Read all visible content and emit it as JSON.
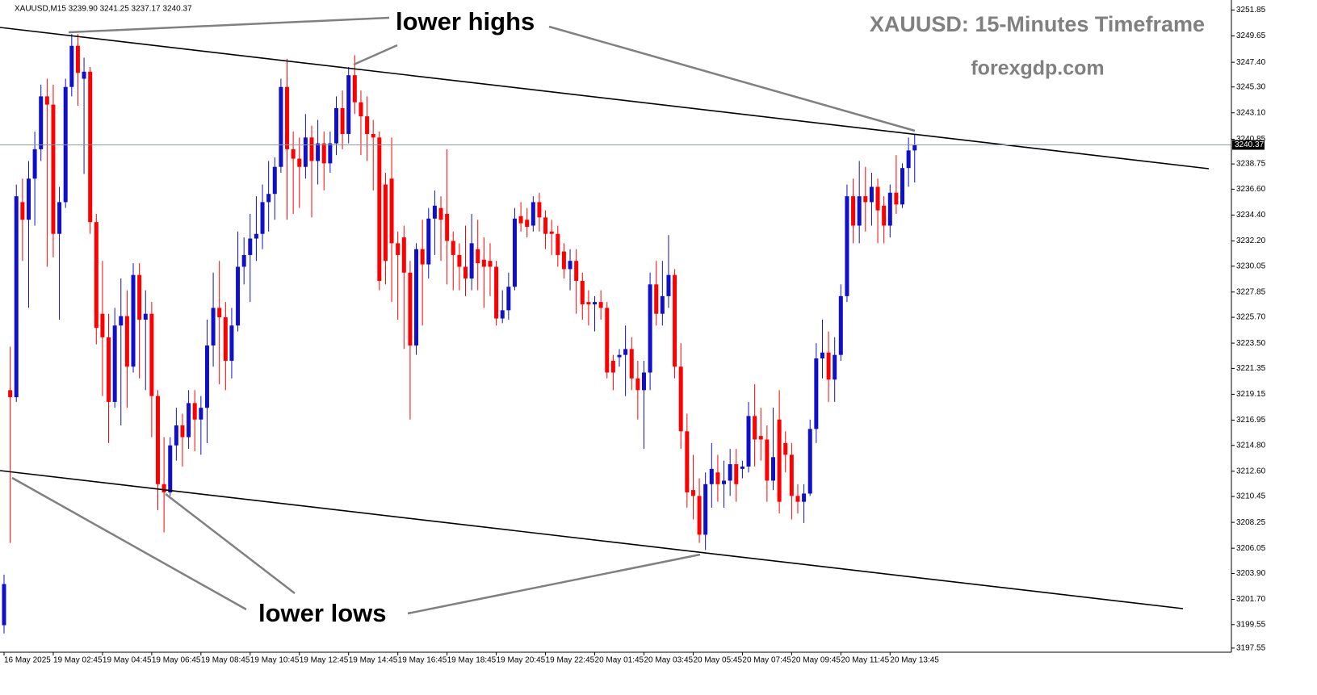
{
  "chart_data": {
    "type": "candlestick",
    "header": "XAUUSD,M15  3239.90 3241.25 3237.17 3240.37",
    "title": "XAUUSD: 15-Minutes Timeframe",
    "subtitle": "forexgdp.com",
    "annotations": [
      "lower highs",
      "lower lows"
    ],
    "up_color": "#1010c8",
    "down_color": "#ff0000",
    "last_price": 3240.37,
    "ylim": [
      3197.2,
      3252.7
    ],
    "yticks": [
      3251.85,
      3249.65,
      {
        "value": 3247.4,
        "label": "3247.40"
      },
      {
        "value": 3245.3,
        "label": "3245.30"
      },
      {
        "value": 3243.1,
        "label": "3243.10"
      },
      3240.85,
      3238.75,
      {
        "value": 3236.6,
        "label": "3236.60"
      },
      {
        "value": 3234.4,
        "label": "3234.40"
      },
      {
        "value": 3232.2,
        "label": "3232.20"
      },
      3230.05,
      3227.85,
      {
        "value": 3225.7,
        "label": "3225.70"
      },
      {
        "value": 3223.5,
        "label": "3223.50"
      },
      3221.35,
      3219.15,
      3216.95,
      {
        "value": 3214.8,
        "label": "3214.80"
      },
      {
        "value": 3212.6,
        "label": "3212.60"
      },
      3210.45,
      3208.25,
      3206.05,
      {
        "value": 3203.9,
        "label": "3203.90"
      },
      {
        "value": 3201.7,
        "label": "3201.70"
      },
      3199.55,
      3197.55
    ],
    "xticks": [
      {
        "value": 0,
        "label": "16 May 2025"
      },
      {
        "value": 8,
        "label": "19 May 02:45"
      },
      {
        "value": 16,
        "label": "19 May 04:45"
      },
      {
        "value": 24,
        "label": "19 May 06:45"
      },
      {
        "value": 32,
        "label": "19 May 08:45"
      },
      {
        "value": 40,
        "label": "19 May 10:45"
      },
      {
        "value": 48,
        "label": "19 May 12:45"
      },
      {
        "value": 56,
        "label": "19 May 14:45"
      },
      {
        "value": 64,
        "label": "19 May 16:45"
      },
      {
        "value": 72,
        "label": "19 May 18:45"
      },
      {
        "value": 80,
        "label": "19 May 20:45"
      },
      {
        "value": 88,
        "label": "19 May 22:45"
      },
      {
        "value": 96,
        "label": "20 May 01:45"
      },
      {
        "value": 104,
        "label": "20 May 03:45"
      },
      {
        "value": 112,
        "label": "20 May 05:45"
      },
      {
        "value": 120,
        "label": "20 May 07:45"
      },
      {
        "value": 128,
        "label": "20 May 09:45"
      },
      {
        "value": 136,
        "label": "20 May 11:45"
      },
      {
        "value": 144,
        "label": "20 May 13:45"
      }
    ],
    "open": [
      3199.5,
      3219.5,
      3218.9,
      3235.5,
      3234.0,
      3237.5,
      3240.0,
      3244.5,
      3243.8,
      3232.8,
      3235.5,
      3245.3,
      3248.8,
      3246.0,
      3246.6,
      3233.8,
      3226.0,
      3224.0,
      3218.5,
      3225.0,
      3225.8,
      3221.5,
      3229.3,
      3225.5,
      3226.0,
      3219.0,
      3211.5,
      3210.8,
      3214.8,
      3216.5,
      3215.5,
      3218.4,
      3217.0,
      3218.0,
      3223.3,
      3226.5,
      3225.7,
      3222.0,
      3225.0,
      3230.0,
      3231.0,
      3232.4,
      3232.8,
      3235.5,
      3236.2,
      3238.5,
      3245.3,
      3240.0,
      3239.2,
      3238.5,
      3241.0,
      3239.0,
      3240.5,
      3238.8,
      3240.5,
      3243.5,
      3241.3,
      3246.3,
      3244.0,
      3242.8,
      3241.3,
      3241.0,
      3237.0,
      3237.5,
      3232.0,
      3232.5,
      3229.5,
      3223.3,
      3231.5,
      3230.2,
      3234.1,
      3235.0,
      3234.5,
      3232.2,
      3231.0,
      3230.0,
      3229.0,
      3231.5,
      3230.6,
      3230.5,
      3230.0,
      3225.6,
      3226.3,
      3228.3,
      3234.3,
      3234.0,
      3233.5,
      3235.5,
      3234.2,
      3233.0,
      3232.8,
      3231.3,
      3229.8,
      3230.5,
      3228.8,
      3227.0,
      3226.8,
      3227.0,
      3226.5,
      3222.0,
      3222.3,
      3222.5,
      3223.0,
      3220.5,
      3219.5,
      3221.0,
      3228.5,
      3226.0,
      3227.5,
      3229.3,
      3221.5,
      3216.0,
      3211.0,
      3210.5,
      3207.2,
      3211.5,
      3212.5,
      3211.5,
      3211.8,
      3213.2,
      3212.8,
      3213.0,
      3217.3,
      3215.6,
      3215.3,
      3211.8,
      3217.0,
      3215.0,
      3214.0,
      3210.5,
      3210.0,
      3210.7,
      3216.2,
      3222.2,
      3222.7,
      3220.4,
      3222.5,
      3227.5,
      3236.0,
      3233.5,
      3236.0,
      3235.5,
      3236.8,
      3235.2,
      3233.5,
      3236.3,
      3235.3,
      3238.4,
      3239.9
    ],
    "high": [
      3203.8,
      3223.2,
      3237.0,
      3237.5,
      3239.0,
      3241.5,
      3245.5,
      3246.0,
      3245.5,
      3236.8,
      3246.0,
      3249.8,
      3249.8,
      3247.8,
      3247.0,
      3234.5,
      3230.5,
      3226.0,
      3226.5,
      3229.0,
      3228.0,
      3230.3,
      3230.3,
      3228.0,
      3227.0,
      3219.5,
      3215.5,
      3215.5,
      3218.0,
      3217.5,
      3219.5,
      3219.5,
      3219.0,
      3225.5,
      3229.5,
      3230.5,
      3227.0,
      3226.5,
      3233.0,
      3232.5,
      3234.5,
      3236.0,
      3237.0,
      3239.0,
      3239.3,
      3246.0,
      3247.7,
      3241.5,
      3241.0,
      3243.0,
      3242.0,
      3242.5,
      3241.5,
      3241.5,
      3244.5,
      3245.0,
      3247.0,
      3248.0,
      3245.0,
      3244.5,
      3242.5,
      3241.5,
      3238.0,
      3241.0,
      3233.0,
      3233.5,
      3230.5,
      3232.0,
      3234.0,
      3235.0,
      3236.5,
      3236.0,
      3240.0,
      3233.0,
      3232.0,
      3233.5,
      3234.5,
      3234.0,
      3232.5,
      3232.0,
      3230.5,
      3228.0,
      3229.5,
      3235.0,
      3235.5,
      3235.0,
      3236.0,
      3236.3,
      3234.8,
      3234.0,
      3233.5,
      3232.0,
      3231.5,
      3231.5,
      3229.5,
      3228.0,
      3227.5,
      3228.0,
      3227.0,
      3222.5,
      3223.0,
      3225.0,
      3224.0,
      3222.0,
      3222.0,
      3229.5,
      3230.5,
      3230.5,
      3232.7,
      3229.8,
      3223.5,
      3217.5,
      3214.0,
      3212.0,
      3212.5,
      3215.0,
      3214.0,
      3213.5,
      3214.5,
      3214.5,
      3213.5,
      3218.5,
      3220.0,
      3218.0,
      3216.5,
      3218.0,
      3219.5,
      3216.0,
      3215.0,
      3211.5,
      3211.5,
      3217.0,
      3223.5,
      3225.5,
      3224.5,
      3224.0,
      3228.5,
      3237.0,
      3237.5,
      3239.0,
      3238.5,
      3238.0,
      3237.5,
      3236.0,
      3237.0,
      3239.5,
      3238.8,
      3241.0,
      3241.25
    ],
    "low": [
      3198.8,
      3206.5,
      3218.5,
      3230.5,
      3226.5,
      3233.5,
      3239.0,
      3230.0,
      3230.8,
      3225.5,
      3235.0,
      3244.5,
      3243.7,
      3237.9,
      3232.8,
      3223.4,
      3219.0,
      3215.0,
      3218.0,
      3216.5,
      3218.0,
      3221.0,
      3220.5,
      3219.5,
      3215.5,
      3209.3,
      3207.4,
      3210.5,
      3213.5,
      3213.0,
      3214.5,
      3214.3,
      3214.0,
      3215.0,
      3221.5,
      3220.0,
      3219.5,
      3220.5,
      3224.5,
      3228.5,
      3227.0,
      3230.5,
      3231.5,
      3233.0,
      3234.0,
      3238.0,
      3234.0,
      3234.5,
      3235.0,
      3237.5,
      3234.2,
      3237.0,
      3236.5,
      3238.0,
      3239.5,
      3240.0,
      3240.5,
      3243.0,
      3239.5,
      3239.0,
      3236.5,
      3228.0,
      3228.5,
      3227.0,
      3225.5,
      3223.0,
      3217.0,
      3222.5,
      3225.0,
      3229.0,
      3231.0,
      3230.5,
      3228.5,
      3228.0,
      3228.0,
      3227.5,
      3228.0,
      3228.0,
      3226.5,
      3227.5,
      3225.0,
      3225.2,
      3225.5,
      3228.0,
      3233.0,
      3232.5,
      3233.0,
      3233.0,
      3231.5,
      3231.0,
      3230.0,
      3229.0,
      3228.0,
      3226.0,
      3225.5,
      3225.0,
      3224.5,
      3225.5,
      3220.5,
      3219.5,
      3221.5,
      3219.0,
      3219.5,
      3217.0,
      3214.5,
      3219.5,
      3225.0,
      3225.0,
      3226.5,
      3220.5,
      3214.5,
      3209.5,
      3208.5,
      3206.5,
      3205.9,
      3209.5,
      3210.0,
      3209.5,
      3210.5,
      3210.0,
      3212.0,
      3212.5,
      3213.0,
      3213.5,
      3210.0,
      3211.0,
      3209.0,
      3212.5,
      3208.5,
      3209.0,
      3208.2,
      3210.5,
      3215.0,
      3220.5,
      3218.5,
      3218.5,
      3222.0,
      3227.0,
      3232.0,
      3232.0,
      3233.0,
      3233.5,
      3232.0,
      3232.0,
      3232.5,
      3234.5,
      3235.0,
      3236.8,
      3237.17
    ],
    "close": [
      3203.0,
      3218.9,
      3236.0,
      3234.0,
      3237.5,
      3240.0,
      3244.5,
      3243.8,
      3232.8,
      3235.5,
      3245.3,
      3248.8,
      3246.5,
      3246.6,
      3233.8,
      3224.8,
      3224.0,
      3218.5,
      3225.0,
      3225.8,
      3221.5,
      3229.3,
      3225.5,
      3226.0,
      3219.0,
      3211.5,
      3210.8,
      3214.8,
      3216.5,
      3215.5,
      3218.4,
      3217.0,
      3218.0,
      3223.3,
      3226.5,
      3225.7,
      3222.0,
      3225.0,
      3230.0,
      3231.0,
      3232.4,
      3232.8,
      3235.5,
      3236.2,
      3238.5,
      3245.3,
      3240.0,
      3239.2,
      3238.5,
      3241.0,
      3239.0,
      3240.5,
      3238.8,
      3240.5,
      3243.5,
      3241.3,
      3246.3,
      3244.0,
      3242.8,
      3241.3,
      3241.0,
      3228.8,
      3230.5,
      3232.0,
      3231.0,
      3229.5,
      3223.3,
      3231.5,
      3230.2,
      3234.1,
      3235.2,
      3234.0,
      3232.2,
      3231.0,
      3230.0,
      3229.0,
      3232.0,
      3230.3,
      3230.0,
      3230.0,
      3225.6,
      3226.3,
      3228.3,
      3234.1,
      3233.7,
      3233.4,
      3235.5,
      3234.2,
      3232.8,
      3232.8,
      3231.0,
      3229.8,
      3230.5,
      3228.8,
      3226.8,
      3226.8,
      3227.0,
      3226.5,
      3221.0,
      3221.0,
      3222.5,
      3223.0,
      3220.5,
      3219.5,
      3221.0,
      3228.5,
      3226.0,
      3227.5,
      3229.3,
      3221.5,
      3216.0,
      3210.8,
      3210.5,
      3207.2,
      3211.5,
      3212.8,
      3211.5,
      3211.8,
      3213.2,
      3211.5,
      3213.0,
      3217.3,
      3215.3,
      3215.3,
      3211.8,
      3213.8,
      3210.0,
      3214.0,
      3210.5,
      3210.0,
      3210.7,
      3216.2,
      3222.2,
      3222.7,
      3220.4,
      3222.5,
      3227.5,
      3236.0,
      3233.5,
      3236.0,
      3235.5,
      3236.8,
      3234.8,
      3233.5,
      3236.3,
      3235.3,
      3238.4,
      3239.9,
      3240.37
    ]
  }
}
